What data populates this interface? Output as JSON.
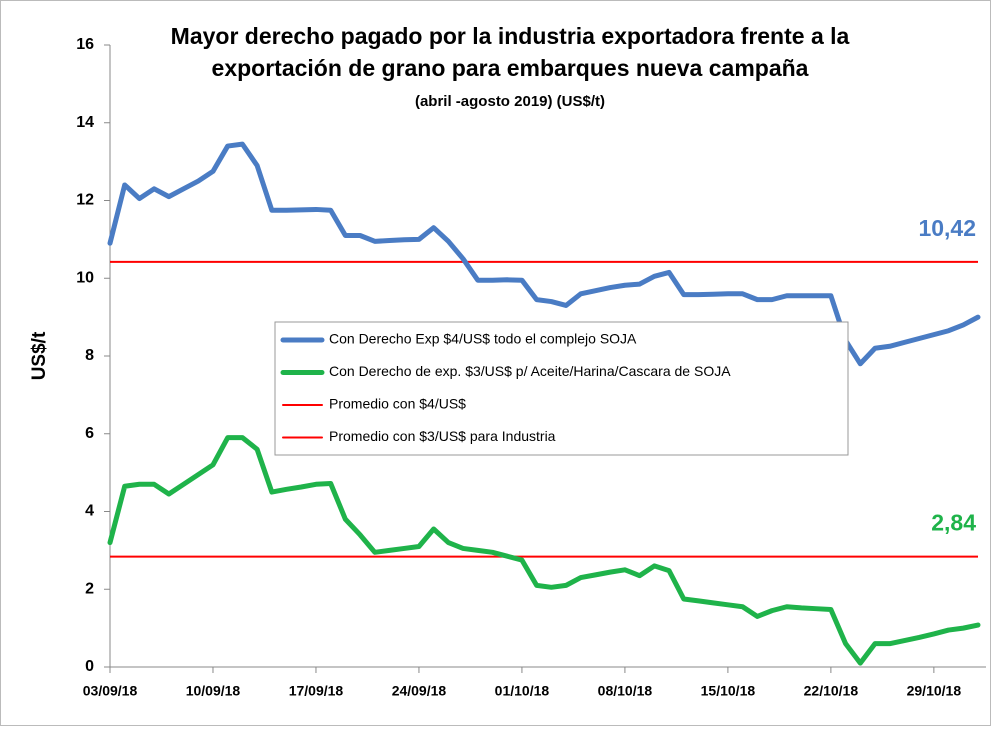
{
  "chart_data": {
    "type": "line",
    "title": [
      "Mayor derecho pagado por la industria exportadora frente a la",
      "exportación de grano para embarques nueva campaña"
    ],
    "subtitle": "(abril -agosto 2019) (US$/t)",
    "y_label": "US$/t",
    "ylim": [
      0,
      16
    ],
    "yticks": [
      0,
      2,
      4,
      6,
      8,
      10,
      12,
      14,
      16
    ],
    "categories": [
      "03/09/18",
      null,
      null,
      null,
      null,
      null,
      null,
      "10/09/18",
      null,
      null,
      null,
      null,
      null,
      null,
      "17/09/18",
      null,
      null,
      null,
      null,
      null,
      null,
      "24/09/18",
      null,
      null,
      null,
      null,
      null,
      null,
      "01/10/18",
      null,
      null,
      null,
      null,
      null,
      null,
      "08/10/18",
      null,
      null,
      null,
      null,
      null,
      null,
      "15/10/18",
      null,
      null,
      null,
      null,
      null,
      null,
      "22/10/18",
      null,
      null,
      null,
      null,
      null,
      null,
      "29/10/18",
      null,
      null,
      null
    ],
    "series": [
      {
        "name": "Con Derecho Exp $4/US$ todo el complejo SOJA",
        "color": "#4a7cc4",
        "values": [
          10.9,
          12.4,
          12.05,
          12.3,
          12.1,
          12.3,
          12.5,
          12.75,
          13.4,
          13.45,
          12.9,
          11.75,
          11.75,
          11.76,
          11.77,
          11.75,
          11.1,
          11.1,
          10.95,
          10.97,
          10.99,
          11.0,
          11.3,
          10.95,
          10.5,
          9.95,
          9.95,
          9.96,
          9.95,
          9.45,
          9.4,
          9.3,
          9.6,
          9.68,
          9.76,
          9.82,
          9.85,
          10.05,
          10.15,
          9.58,
          9.58,
          9.59,
          9.6,
          9.6,
          9.45,
          9.45,
          9.55,
          9.55,
          9.55,
          9.55,
          8.4,
          7.8,
          8.2,
          8.25,
          8.35,
          8.45,
          8.55,
          8.65,
          8.8,
          9.0
        ]
      },
      {
        "name": "Con Derecho de exp. $3/US$ p/ Aceite/Harina/Cascara de SOJA",
        "color": "#1fb34a",
        "values": [
          3.2,
          4.65,
          4.7,
          4.7,
          4.45,
          4.7,
          4.95,
          5.2,
          5.9,
          5.9,
          5.6,
          4.5,
          4.57,
          4.63,
          4.7,
          4.72,
          3.8,
          3.4,
          2.95,
          3.0,
          3.05,
          3.1,
          3.55,
          3.2,
          3.05,
          3.0,
          2.95,
          2.85,
          2.75,
          2.1,
          2.05,
          2.1,
          2.3,
          2.37,
          2.44,
          2.5,
          2.35,
          2.6,
          2.48,
          1.75,
          1.7,
          1.65,
          1.6,
          1.55,
          1.3,
          1.45,
          1.55,
          1.52,
          1.5,
          1.48,
          0.6,
          0.1,
          0.6,
          0.6,
          0.68,
          0.76,
          0.85,
          0.95,
          1.0,
          1.08
        ]
      }
    ],
    "reference_lines": [
      {
        "name": "Promedio con $4/US$",
        "color": "#ff0000",
        "value": 10.42,
        "value_label": "10,42",
        "label_color": "#4a7cc4"
      },
      {
        "name": "Promedio con $3/US$ para Industria",
        "color": "#ff0000",
        "value": 2.84,
        "value_label": "2,84",
        "label_color": "#1fb34a"
      }
    ]
  }
}
